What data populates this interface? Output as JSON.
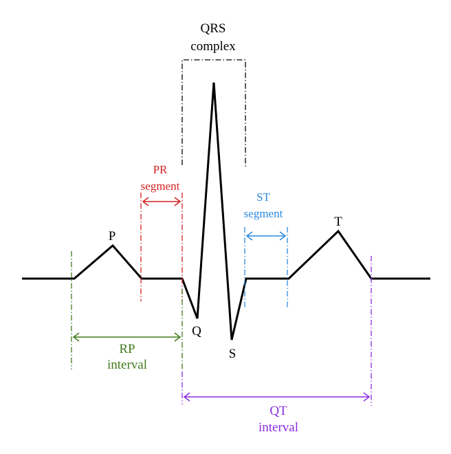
{
  "colors": {
    "waveform": "#000000",
    "qrs": "#000000",
    "pr": "#d42020",
    "st": "#2b88e0",
    "rp": "#3f7a1a",
    "qt": "#8a2be2"
  },
  "labels": {
    "qrs_line1": "QRS",
    "qrs_line2": "complex",
    "pr_line1": "PR",
    "pr_line2": "segment",
    "st_line1": "ST",
    "st_line2": "segment",
    "rp_line1": "RP",
    "rp_line2": "interval",
    "qt_line1": "QT",
    "qt_line2": "interval",
    "p": "P",
    "q": "Q",
    "s": "S",
    "t": "T"
  }
}
